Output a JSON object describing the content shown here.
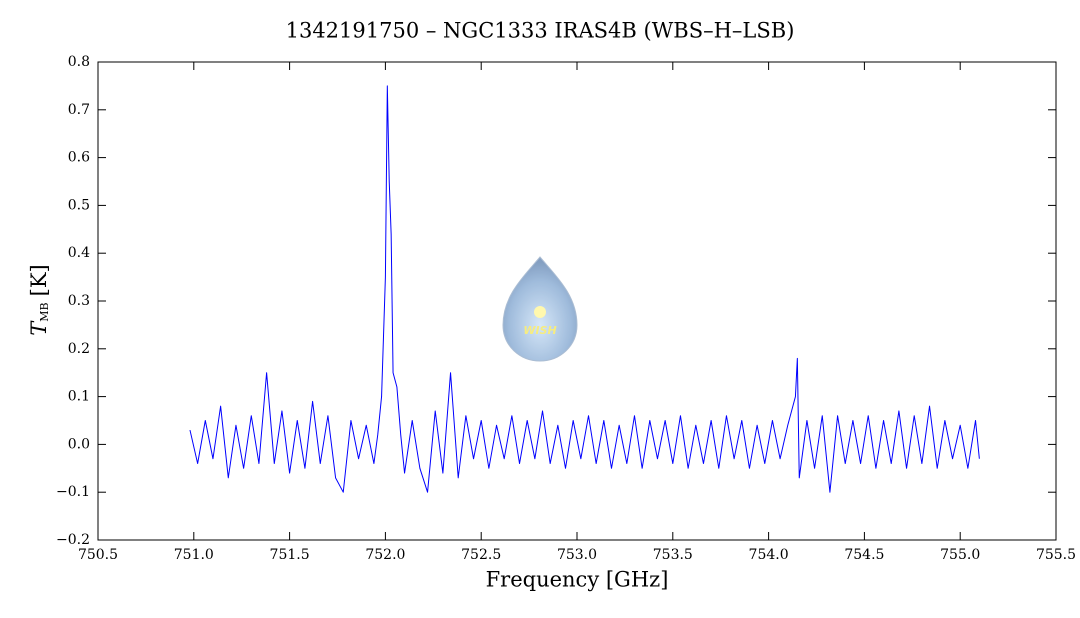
{
  "chart_data": {
    "type": "line",
    "title": "1342191750 – NGC1333 IRAS4B (WBS–H–LSB)",
    "xlabel": "Frequency [GHz]",
    "ylabel": {
      "symbol": "T",
      "subscript": "MB",
      "unit": "[K]"
    },
    "watermark": "WISH",
    "color": "#0000ff",
    "xlim": [
      750.5,
      755.5
    ],
    "ylim": [
      -0.2,
      0.8
    ],
    "xticks": [
      750.5,
      {
        "value": 751,
        "label": "751.0"
      },
      751.5,
      {
        "value": 752,
        "label": "752.0"
      },
      752.5,
      {
        "value": 753,
        "label": "753.0"
      },
      753.5,
      {
        "value": 754,
        "label": "754.0"
      },
      754.5,
      {
        "value": 755,
        "label": "755.0"
      },
      755.5
    ],
    "yticks": [
      {
        "value": -0.2,
        "label": "−0.2"
      },
      {
        "value": -0.1,
        "label": "−0.1"
      },
      {
        "value": 0,
        "label": "0.0"
      },
      0.1,
      0.2,
      0.3,
      0.4,
      0.5,
      0.6,
      0.7,
      0.8
    ],
    "x": [
      750.98,
      751.02,
      751.06,
      751.1,
      751.14,
      751.18,
      751.22,
      751.26,
      751.3,
      751.34,
      751.38,
      751.42,
      751.46,
      751.5,
      751.54,
      751.58,
      751.62,
      751.66,
      751.7,
      751.74,
      751.78,
      751.82,
      751.86,
      751.9,
      751.94,
      751.96,
      751.98,
      752.0,
      752.01,
      752.02,
      752.03,
      752.04,
      752.06,
      752.08,
      752.1,
      752.14,
      752.18,
      752.22,
      752.26,
      752.3,
      752.34,
      752.38,
      752.42,
      752.46,
      752.5,
      752.54,
      752.58,
      752.62,
      752.66,
      752.7,
      752.74,
      752.78,
      752.82,
      752.86,
      752.9,
      752.94,
      752.98,
      753.02,
      753.06,
      753.1,
      753.14,
      753.18,
      753.22,
      753.26,
      753.3,
      753.34,
      753.38,
      753.42,
      753.46,
      753.5,
      753.54,
      753.58,
      753.62,
      753.66,
      753.7,
      753.74,
      753.78,
      753.82,
      753.86,
      753.9,
      753.94,
      753.98,
      754.02,
      754.06,
      754.1,
      754.14,
      754.15,
      754.16,
      754.2,
      754.24,
      754.28,
      754.32,
      754.36,
      754.4,
      754.44,
      754.48,
      754.52,
      754.56,
      754.6,
      754.64,
      754.68,
      754.72,
      754.76,
      754.8,
      754.84,
      754.88,
      754.92,
      754.96,
      755.0,
      755.04,
      755.08,
      755.1
    ],
    "values": [
      0.03,
      -0.04,
      0.05,
      -0.03,
      0.08,
      -0.07,
      0.04,
      -0.05,
      0.06,
      -0.04,
      0.15,
      -0.04,
      0.07,
      -0.06,
      0.05,
      -0.05,
      0.09,
      -0.04,
      0.06,
      -0.07,
      -0.1,
      0.05,
      -0.03,
      0.04,
      -0.04,
      0.02,
      0.1,
      0.35,
      0.75,
      0.55,
      0.44,
      0.15,
      0.12,
      0.02,
      -0.06,
      0.05,
      -0.05,
      -0.1,
      0.07,
      -0.06,
      0.15,
      -0.07,
      0.06,
      -0.03,
      0.05,
      -0.05,
      0.04,
      -0.03,
      0.06,
      -0.04,
      0.05,
      -0.03,
      0.07,
      -0.04,
      0.04,
      -0.05,
      0.05,
      -0.03,
      0.06,
      -0.04,
      0.05,
      -0.05,
      0.04,
      -0.04,
      0.06,
      -0.05,
      0.05,
      -0.03,
      0.05,
      -0.04,
      0.06,
      -0.05,
      0.04,
      -0.04,
      0.05,
      -0.05,
      0.06,
      -0.03,
      0.05,
      -0.05,
      0.04,
      -0.04,
      0.05,
      -0.03,
      0.04,
      0.1,
      0.18,
      -0.07,
      0.05,
      -0.05,
      0.06,
      -0.1,
      0.06,
      -0.04,
      0.05,
      -0.04,
      0.06,
      -0.05,
      0.05,
      -0.04,
      0.07,
      -0.05,
      0.06,
      -0.04,
      0.08,
      -0.05,
      0.05,
      -0.03,
      0.04,
      -0.05,
      0.05,
      -0.03
    ]
  }
}
